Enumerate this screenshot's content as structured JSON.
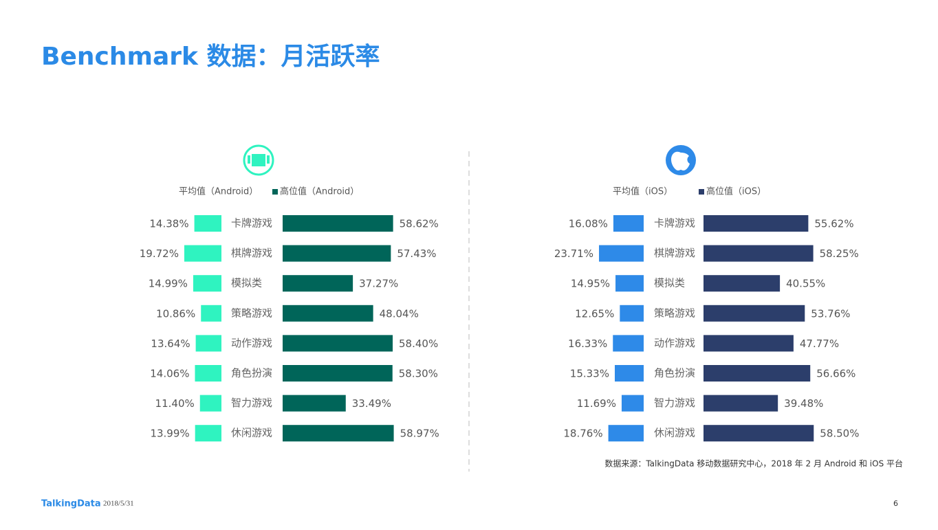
{
  "title": "Benchmark 数据：月活跃率",
  "source": "数据来源：TalkingData 移动数据研究中心，2018 年 2 月 Android 和 iOS 平台",
  "footer": {
    "logo": "TalkingData",
    "date": "2018/5/31",
    "page": "6"
  },
  "chart_data": [
    {
      "type": "bar",
      "categories": [
        "卡牌游戏",
        "棋牌游戏",
        "模拟类",
        "策略游戏",
        "动作游戏",
        "角色扮演",
        "智力游戏",
        "休闲游戏"
      ],
      "series": [
        {
          "name": "平均值（Android）",
          "color": "#2ff3c0",
          "values": [
            14.38,
            19.72,
            14.99,
            10.86,
            13.64,
            14.06,
            11.4,
            13.99
          ],
          "value_labels": [
            "14.38%",
            "19.72%",
            "14.99%",
            "10.86%",
            "13.64%",
            "14.06%",
            "11.40%",
            "13.99%"
          ]
        },
        {
          "name": "高位值（Android）",
          "color": "#006559",
          "values": [
            58.62,
            57.43,
            37.27,
            48.04,
            58.4,
            58.3,
            33.49,
            58.97
          ],
          "value_labels": [
            "58.62%",
            "57.43%",
            "37.27%",
            "48.04%",
            "58.40%",
            "58.30%",
            "33.49%",
            "58.97%"
          ]
        }
      ]
    },
    {
      "type": "bar",
      "categories": [
        "卡牌游戏",
        "棋牌游戏",
        "模拟类",
        "策略游戏",
        "动作游戏",
        "角色扮演",
        "智力游戏",
        "休闲游戏"
      ],
      "series": [
        {
          "name": "平均值（iOS）",
          "color": "#2e8ae8",
          "values": [
            16.08,
            23.71,
            14.95,
            12.65,
            16.33,
            15.33,
            11.69,
            18.76
          ],
          "value_labels": [
            "16.08%",
            "23.71%",
            "14.95%",
            "12.65%",
            "16.33%",
            "15.33%",
            "11.69%",
            "18.76%"
          ]
        },
        {
          "name": "高位值（iOS）",
          "color": "#2c3e6b",
          "values": [
            55.62,
            58.25,
            40.55,
            53.76,
            47.77,
            56.66,
            39.48,
            58.5
          ],
          "value_labels": [
            "55.62%",
            "58.25%",
            "40.55%",
            "53.76%",
            "47.77%",
            "56.66%",
            "39.48%",
            "58.50%"
          ]
        }
      ]
    }
  ]
}
